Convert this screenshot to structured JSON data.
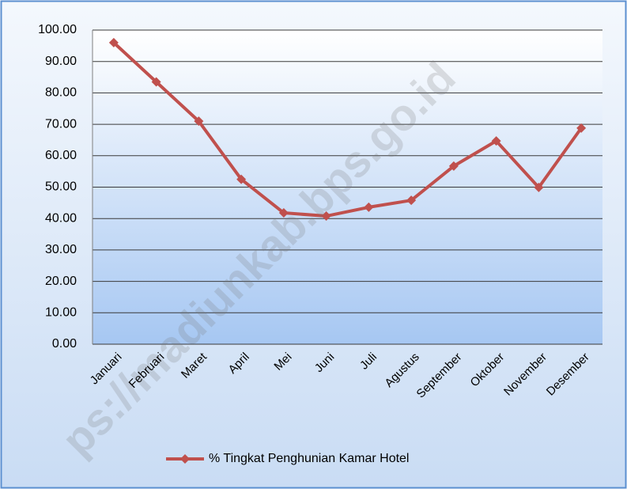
{
  "chart_data": {
    "type": "line",
    "categories": [
      "Januari",
      "Februari",
      "Maret",
      "April",
      "Mei",
      "Juni",
      "Juli",
      "Agustus",
      "September",
      "Oktober",
      "November",
      "Desember"
    ],
    "series": [
      {
        "name": "% Tingkat Penghunian Kamar Hotel",
        "color": "#c0504d",
        "values": [
          96.0,
          83.5,
          71.0,
          52.5,
          41.8,
          40.8,
          43.6,
          45.8,
          56.7,
          64.7,
          49.9,
          68.8
        ]
      }
    ],
    "ylim": [
      0,
      100
    ],
    "yticks": [
      {
        "value": 0,
        "label": "0.00"
      },
      {
        "value": 10,
        "label": "10.00"
      },
      {
        "value": 20,
        "label": "20.00"
      },
      {
        "value": 30,
        "label": "30.00"
      },
      {
        "value": 40,
        "label": "40.00"
      },
      {
        "value": 50,
        "label": "50.00"
      },
      {
        "value": 60,
        "label": "60.00"
      },
      {
        "value": 70,
        "label": "70.00"
      },
      {
        "value": 80,
        "label": "80.00"
      },
      {
        "value": 90,
        "label": "90.00"
      },
      {
        "value": 100,
        "label": "100.00"
      }
    ],
    "grid": true,
    "legend": "bottom",
    "watermark": "ps://madiunkab.bps.go.id"
  }
}
